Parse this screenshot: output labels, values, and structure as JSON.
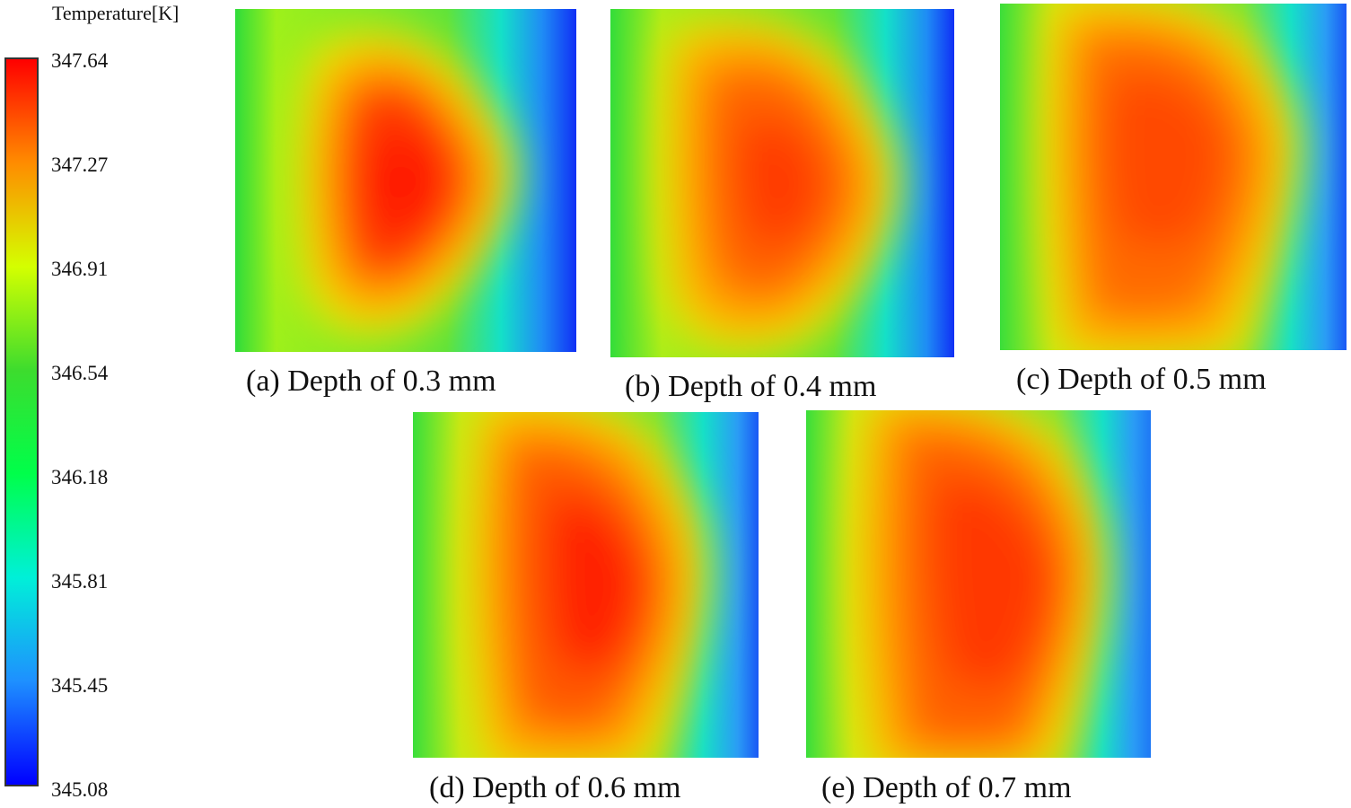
{
  "legend": {
    "title": "Temperature[K]",
    "ticks": [
      "347.64",
      "347.27",
      "346.91",
      "346.54",
      "346.18",
      "345.81",
      "345.45",
      "345.08"
    ],
    "colors": [
      "#ff0000",
      "#ff8c00",
      "#d4ff00",
      "#3ddc2e",
      "#00ff4a",
      "#00f0d8",
      "#1e90ff",
      "#0000ff"
    ]
  },
  "panels": [
    {
      "caption": "(a) Depth of 0.3 mm"
    },
    {
      "caption": "(b) Depth of 0.4 mm"
    },
    {
      "caption": "(c) Depth of 0.5 mm"
    },
    {
      "caption": "(d) Depth of 0.6 mm"
    },
    {
      "caption": "(e) Depth of 0.7 mm"
    }
  ]
}
